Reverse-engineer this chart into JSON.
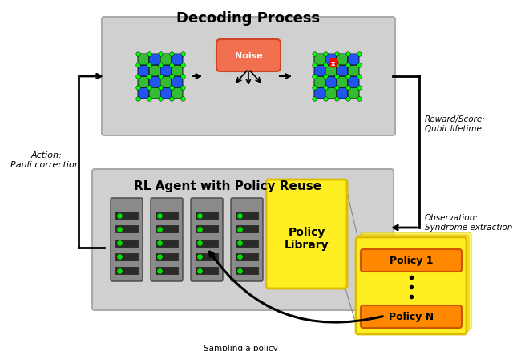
{
  "title_decoding": "Decoding Process",
  "title_rl": "RL Agent with Policy Reuse",
  "label_action": "Action:\nPauli correction.",
  "label_reward": "Reward/Score:\nQubit lifetime.",
  "label_observation": "Observation:\nSyndrome extraction.",
  "label_sampling": "Sampling a policy\nfrom the library.",
  "label_noise": "Noise",
  "label_policy_library": "Policy\nLibrary",
  "label_policy1": "Policy 1",
  "label_policyN": "Policy N",
  "bg": "#ffffff",
  "gray_box": "#d0d0d0",
  "gray_box_edge": "#aaaaaa",
  "server_body": "#8a8a8a",
  "server_bar": "#2a2a2a",
  "green_dot": "#00dd00",
  "yellow_box": "#ffee22",
  "yellow_edge": "#ddbb00",
  "orange_box": "#ff8800",
  "orange_edge": "#cc5500",
  "noise_color": "#f07050",
  "noise_edge": "#cc4422",
  "grid_blue": "#2255ee",
  "grid_green": "#33bb33",
  "grid_dot": "#00ff00",
  "arrow_color": "#000000",
  "connector_line": "#888888"
}
